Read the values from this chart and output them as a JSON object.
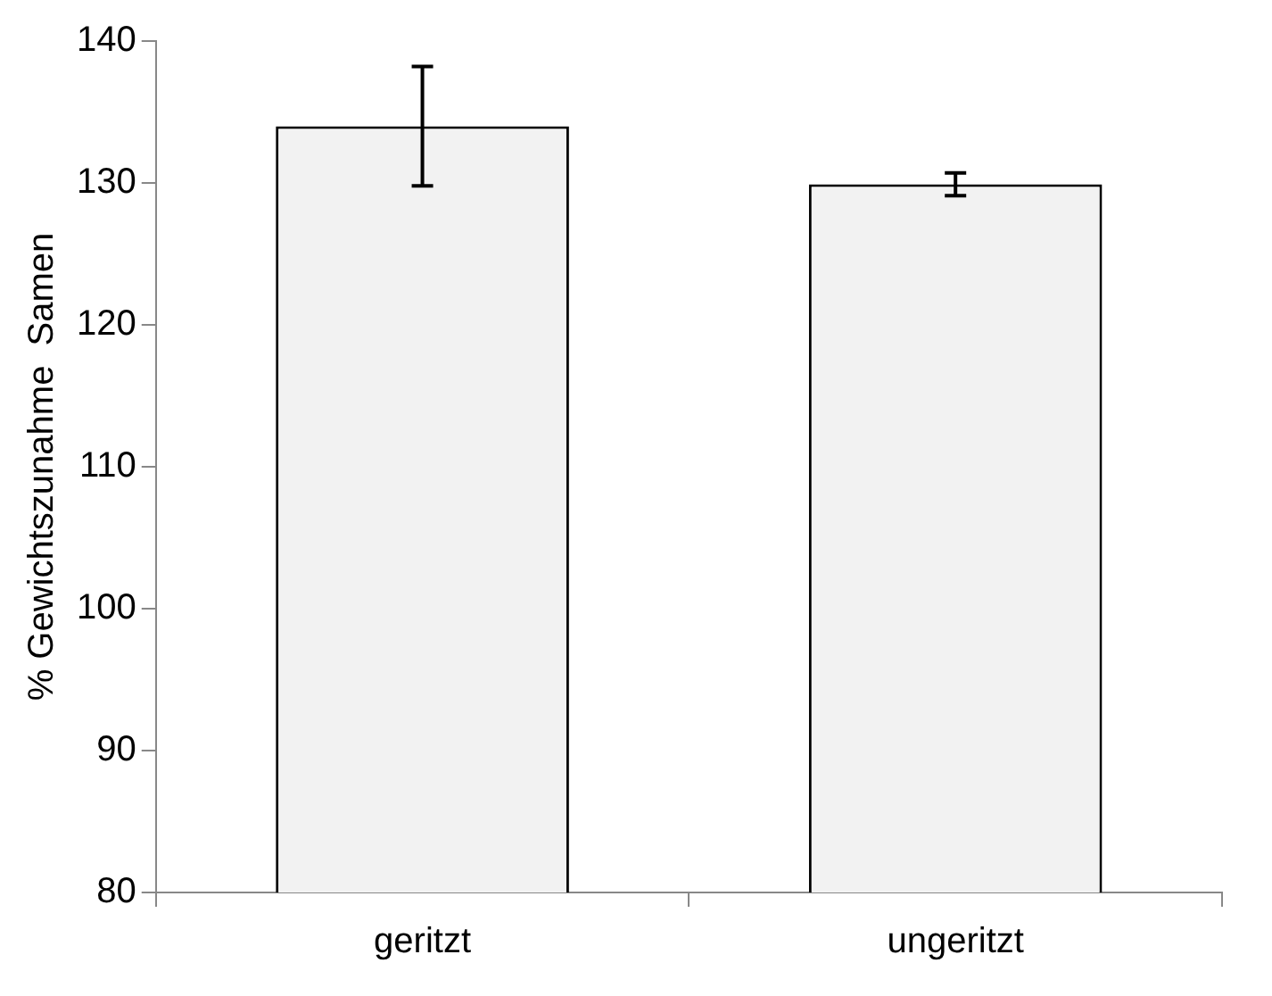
{
  "chart_data": {
    "type": "bar",
    "ylabel": "% Gewichtszunahme  Samen",
    "categories": [
      "geritzt",
      "ungeritzt"
    ],
    "series": [
      {
        "color": "#f2f2f2",
        "values": [
          134,
          129.9
        ],
        "errors": [
          4.2,
          0.8
        ]
      }
    ],
    "ylim": [
      80,
      140
    ],
    "yticks": [
      80,
      90,
      100,
      110,
      120,
      130,
      140
    ],
    "grid": false,
    "legend": false
  }
}
